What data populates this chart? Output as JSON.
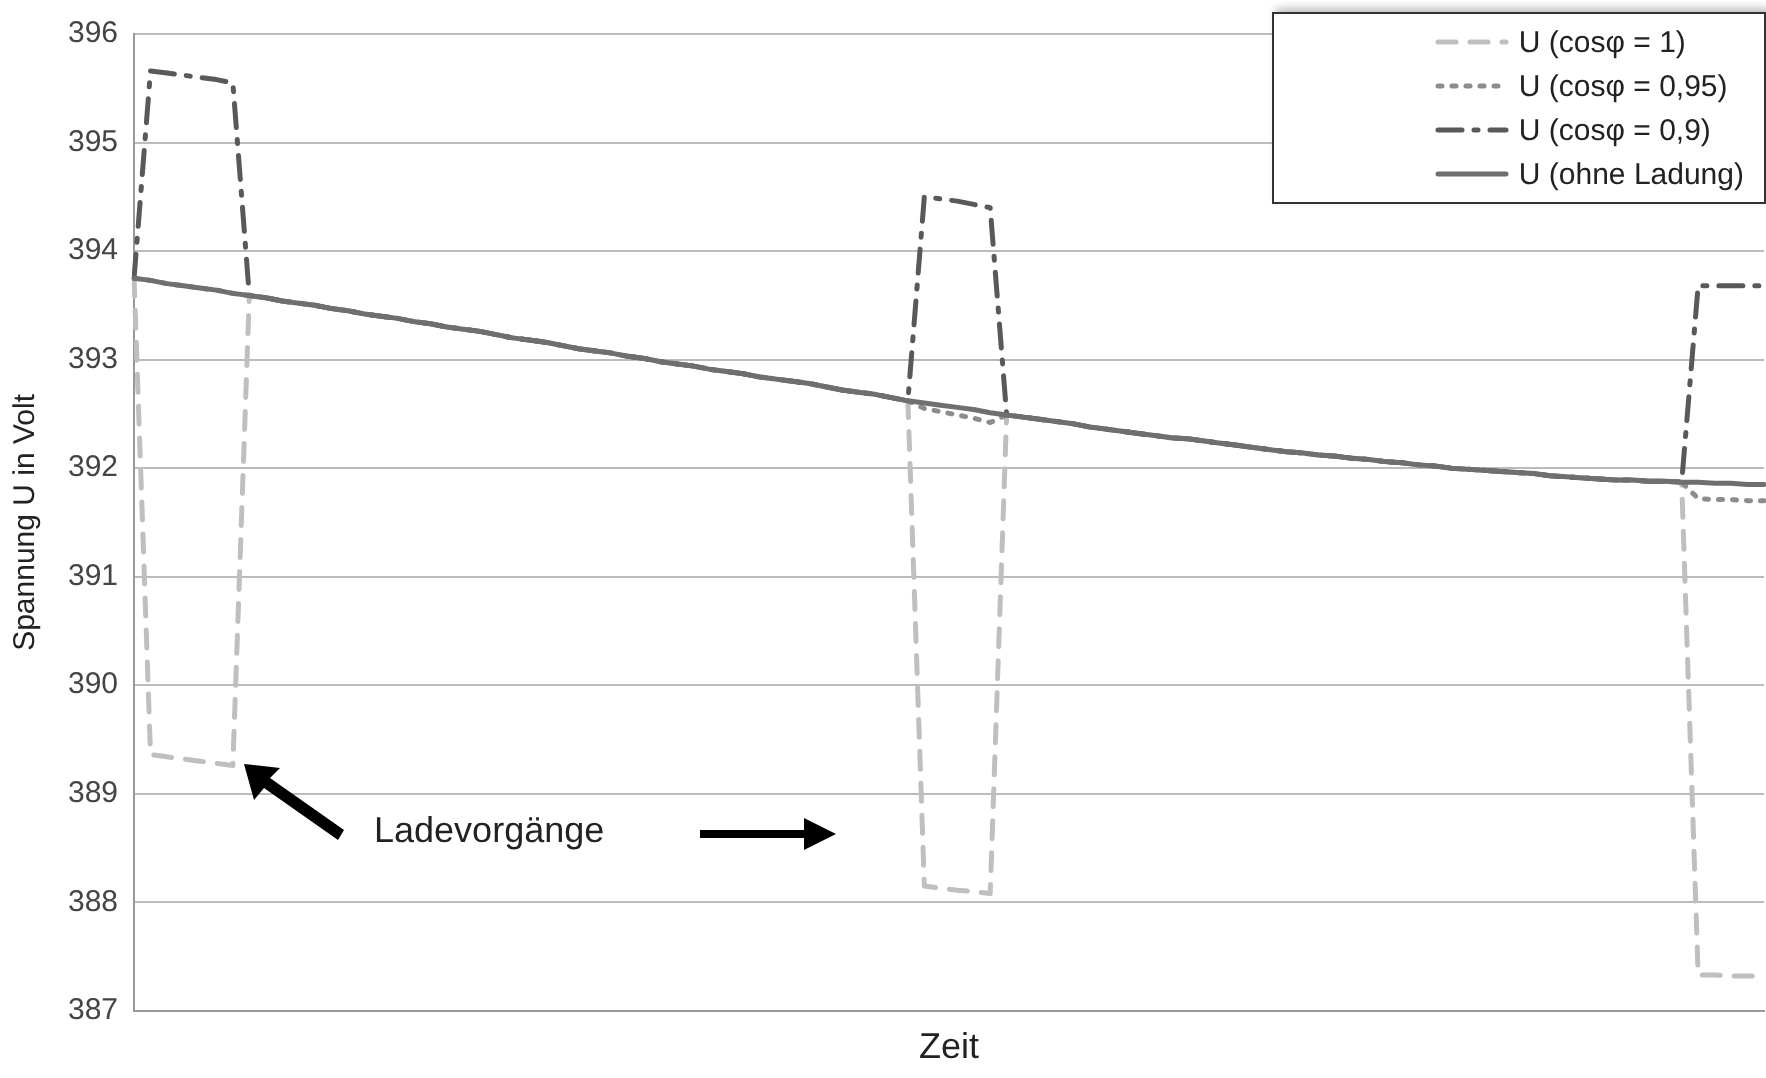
{
  "chart_data": {
    "type": "line",
    "xlabel": "Zeit",
    "ylabel": "Spannung U in Volt",
    "categories": [
      null,
      null,
      null,
      null,
      null,
      null,
      null,
      null,
      null,
      null,
      null,
      null,
      null,
      null,
      null,
      null,
      null,
      null,
      null,
      null,
      null,
      null,
      null,
      null,
      null,
      null,
      null,
      null,
      null,
      null,
      null,
      null,
      null,
      null,
      null,
      null,
      null,
      null,
      null,
      null,
      null,
      null,
      null,
      null,
      null,
      null,
      null,
      null,
      null,
      null,
      null,
      null,
      null,
      null,
      null,
      null,
      null,
      null,
      null,
      null,
      null,
      null,
      null,
      null,
      null,
      null,
      null,
      null,
      null,
      null,
      null,
      null,
      null,
      null,
      null,
      null,
      null,
      null,
      null,
      null,
      null,
      null,
      null,
      null,
      null,
      null,
      null,
      null,
      null,
      null,
      null,
      null,
      null,
      null,
      null,
      null,
      null,
      null,
      null,
      null
    ],
    "ylim": [
      387,
      396
    ],
    "yticks": [
      387,
      388,
      389,
      390,
      391,
      392,
      393,
      394,
      395,
      396
    ],
    "grid": "y",
    "legend": "top right",
    "tick_labels": "y",
    "marker": "none",
    "annotations": [
      "Ladevorgänge"
    ],
    "series": [
      {
        "name": "U (cosφ = 1)",
        "color": "#bfbfbf",
        "line_style": "dashed",
        "values": [
          393.75,
          389.36,
          389.34,
          389.32,
          389.3,
          389.28,
          389.26,
          393.59,
          393.57,
          393.54,
          393.52,
          393.5,
          393.47,
          393.45,
          393.42,
          393.4,
          393.38,
          393.35,
          393.33,
          393.3,
          393.28,
          393.26,
          393.23,
          393.2,
          393.18,
          393.16,
          393.13,
          393.1,
          393.08,
          393.06,
          393.03,
          393.01,
          392.98,
          392.96,
          392.94,
          392.91,
          392.89,
          392.87,
          392.84,
          392.82,
          392.8,
          392.78,
          392.75,
          392.72,
          392.7,
          392.68,
          392.65,
          392.62,
          388.15,
          388.13,
          388.11,
          388.1,
          388.08,
          392.49,
          392.47,
          392.45,
          392.43,
          392.41,
          392.38,
          392.36,
          392.34,
          392.32,
          392.3,
          392.28,
          392.27,
          392.25,
          392.23,
          392.21,
          392.19,
          392.17,
          392.15,
          392.14,
          392.12,
          392.11,
          392.09,
          392.08,
          392.06,
          392.05,
          392.03,
          392.02,
          392.0,
          391.99,
          391.98,
          391.97,
          391.96,
          391.95,
          391.93,
          391.92,
          391.91,
          391.9,
          391.89,
          391.89,
          391.88,
          391.88,
          391.87,
          387.33,
          387.33,
          387.32,
          387.32,
          387.32
        ]
      },
      {
        "name": "U (cosφ = 0,95)",
        "color": "#8c8c8c",
        "line_style": "dotted",
        "values": [
          393.75,
          393.73,
          393.7,
          393.68,
          393.66,
          393.64,
          393.61,
          393.59,
          393.57,
          393.54,
          393.52,
          393.5,
          393.47,
          393.45,
          393.42,
          393.4,
          393.38,
          393.35,
          393.33,
          393.3,
          393.28,
          393.26,
          393.23,
          393.2,
          393.18,
          393.16,
          393.13,
          393.1,
          393.08,
          393.06,
          393.03,
          393.01,
          392.98,
          392.96,
          392.94,
          392.91,
          392.89,
          392.87,
          392.84,
          392.82,
          392.8,
          392.78,
          392.75,
          392.72,
          392.7,
          392.68,
          392.65,
          392.62,
          392.55,
          392.52,
          392.49,
          392.46,
          392.42,
          392.49,
          392.47,
          392.45,
          392.43,
          392.41,
          392.38,
          392.36,
          392.34,
          392.32,
          392.3,
          392.28,
          392.27,
          392.25,
          392.23,
          392.21,
          392.19,
          392.17,
          392.15,
          392.14,
          392.12,
          392.11,
          392.09,
          392.08,
          392.06,
          392.05,
          392.03,
          392.02,
          392.0,
          391.99,
          391.98,
          391.97,
          391.96,
          391.95,
          391.93,
          391.92,
          391.91,
          391.9,
          391.89,
          391.89,
          391.88,
          391.88,
          391.87,
          391.72,
          391.71,
          391.71,
          391.7,
          391.7
        ]
      },
      {
        "name": "U (cosφ = 0,9)",
        "color": "#595959",
        "line_style": "dashdot",
        "values": [
          393.75,
          395.66,
          395.64,
          395.62,
          395.6,
          395.58,
          395.55,
          393.59,
          393.57,
          393.54,
          393.52,
          393.5,
          393.47,
          393.45,
          393.42,
          393.4,
          393.38,
          393.35,
          393.33,
          393.3,
          393.28,
          393.26,
          393.23,
          393.2,
          393.18,
          393.16,
          393.13,
          393.1,
          393.08,
          393.06,
          393.03,
          393.01,
          392.98,
          392.96,
          392.94,
          392.91,
          392.89,
          392.87,
          392.84,
          392.82,
          392.8,
          392.78,
          392.75,
          392.72,
          392.7,
          392.68,
          392.65,
          392.62,
          394.5,
          394.48,
          394.46,
          394.43,
          394.4,
          392.49,
          392.47,
          392.45,
          392.43,
          392.41,
          392.38,
          392.36,
          392.34,
          392.32,
          392.3,
          392.28,
          392.27,
          392.25,
          392.23,
          392.21,
          392.19,
          392.17,
          392.15,
          392.14,
          392.12,
          392.11,
          392.09,
          392.08,
          392.06,
          392.05,
          392.03,
          392.02,
          392.0,
          391.99,
          391.98,
          391.97,
          391.96,
          391.95,
          391.93,
          391.92,
          391.91,
          391.9,
          391.89,
          391.89,
          391.88,
          391.88,
          391.87,
          393.68,
          393.68,
          393.68,
          393.68,
          393.68
        ]
      },
      {
        "name": "U (ohne Ladung)",
        "color": "#6f6f6f",
        "line_style": "solid",
        "values": [
          393.75,
          393.73,
          393.7,
          393.68,
          393.66,
          393.64,
          393.61,
          393.59,
          393.57,
          393.54,
          393.52,
          393.5,
          393.47,
          393.45,
          393.42,
          393.4,
          393.38,
          393.35,
          393.33,
          393.3,
          393.28,
          393.26,
          393.23,
          393.2,
          393.18,
          393.16,
          393.13,
          393.1,
          393.08,
          393.06,
          393.03,
          393.01,
          392.98,
          392.96,
          392.94,
          392.91,
          392.89,
          392.87,
          392.84,
          392.82,
          392.8,
          392.78,
          392.75,
          392.72,
          392.7,
          392.68,
          392.65,
          392.62,
          392.6,
          392.58,
          392.56,
          392.54,
          392.51,
          392.49,
          392.47,
          392.45,
          392.43,
          392.41,
          392.38,
          392.36,
          392.34,
          392.32,
          392.3,
          392.28,
          392.27,
          392.25,
          392.23,
          392.21,
          392.19,
          392.17,
          392.15,
          392.14,
          392.12,
          392.11,
          392.09,
          392.08,
          392.06,
          392.05,
          392.03,
          392.02,
          392.0,
          391.99,
          391.98,
          391.97,
          391.96,
          391.95,
          391.93,
          391.92,
          391.91,
          391.9,
          391.89,
          391.89,
          391.88,
          391.88,
          391.87,
          391.87,
          391.86,
          391.86,
          391.85,
          391.85
        ]
      }
    ]
  }
}
